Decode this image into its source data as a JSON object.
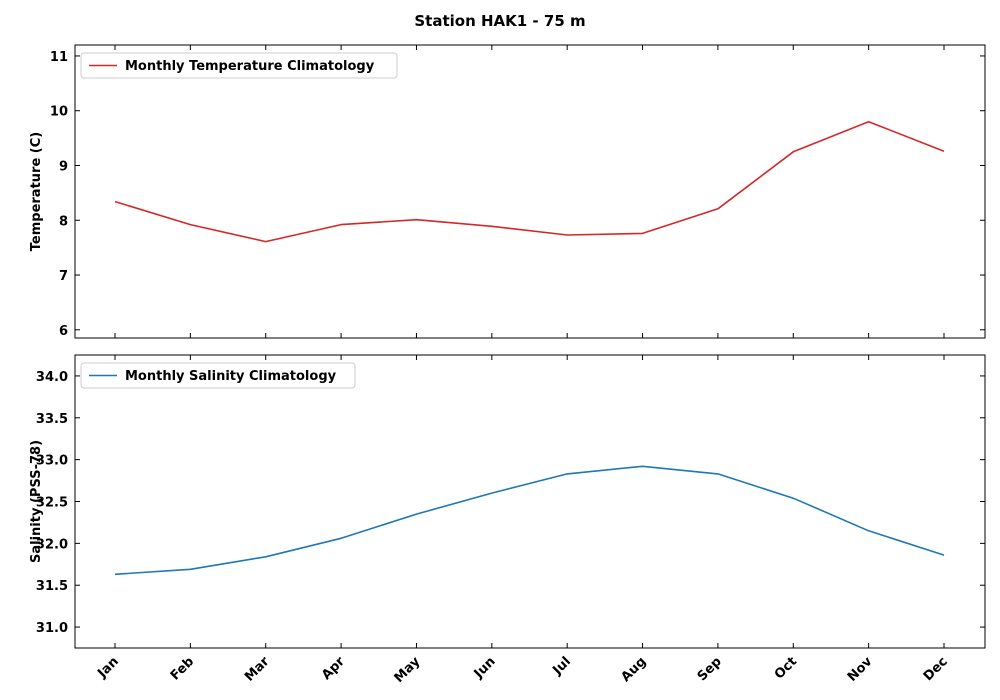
{
  "figure_title": "Station HAK1 - 75 m",
  "chart_data": [
    {
      "type": "line",
      "categories": [
        "Jan",
        "Feb",
        "Mar",
        "Apr",
        "May",
        "Jun",
        "Jul",
        "Aug",
        "Sep",
        "Oct",
        "Nov",
        "Dec"
      ],
      "series": [
        {
          "name": "Monthly Temperature Climatology",
          "color": "#d62728",
          "values": [
            8.34,
            7.92,
            7.61,
            7.92,
            8.01,
            7.89,
            7.73,
            7.76,
            8.21,
            9.25,
            9.8,
            9.26
          ]
        }
      ],
      "ylabel": "Temperature (C)",
      "ylim": [
        5.85,
        11.2
      ],
      "yticks": [
        "6",
        "7",
        "8",
        "9",
        "10",
        "11"
      ],
      "show_xtick_labels": false,
      "legend": "top-left",
      "grid": false
    },
    {
      "type": "line",
      "categories": [
        "Jan",
        "Feb",
        "Mar",
        "Apr",
        "May",
        "Jun",
        "Jul",
        "Aug",
        "Sep",
        "Oct",
        "Nov",
        "Dec"
      ],
      "series": [
        {
          "name": "Monthly Salinity Climatology",
          "color": "#1f77b4",
          "values": [
            31.63,
            31.69,
            31.84,
            32.06,
            32.35,
            32.6,
            32.83,
            32.92,
            32.83,
            32.54,
            32.15,
            31.86
          ]
        }
      ],
      "ylabel": "Salinity (PSS-78)",
      "ylim": [
        30.75,
        34.25
      ],
      "yticks": [
        "31.0",
        "31.5",
        "32.0",
        "32.5",
        "33.0",
        "33.5",
        "34.0"
      ],
      "show_xtick_labels": true,
      "legend": "top-left",
      "grid": false
    }
  ]
}
